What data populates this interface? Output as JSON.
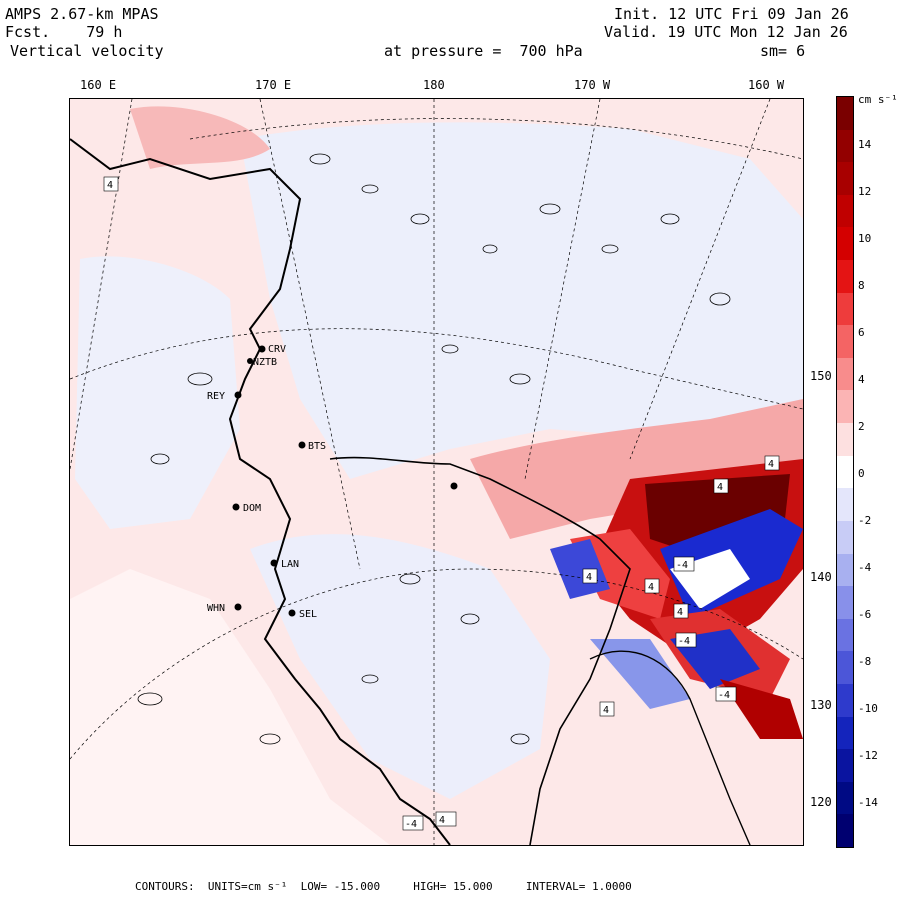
{
  "header": {
    "model": "AMPS 2.67-km MPAS",
    "fcst_label": "Fcst.",
    "fcst_value": "79 h",
    "field": "Vertical velocity",
    "init": "Init. 12 UTC Fri 09 Jan 26",
    "valid": "Valid. 19 UTC Mon 12 Jan 26",
    "pressure": "at pressure =  700 hPa",
    "smoothing": "sm= 6"
  },
  "longitude_labels": [
    "160 E",
    "170 E",
    "180",
    "170 W",
    "160 W"
  ],
  "latitude_labels": [
    "150 W",
    "140 W",
    "130 W",
    "120 W"
  ],
  "colorbar": {
    "units": "cm s⁻¹",
    "ticks": [
      "14",
      "12",
      "10",
      "8",
      "6",
      "4",
      "2",
      "0",
      "-2",
      "-4",
      "-6",
      "-8",
      "-10",
      "-12",
      "-14"
    ],
    "colors": [
      "#7a0000",
      "#930000",
      "#a80000",
      "#c00000",
      "#d40000",
      "#e41414",
      "#ee3c3c",
      "#f46464",
      "#f88c8c",
      "#fbb4b4",
      "#fde0e0",
      "#ffffff",
      "#e4e6fb",
      "#c8ccf6",
      "#a8b0f0",
      "#8890ea",
      "#6a72e2",
      "#4c56d8",
      "#2e3acc",
      "#1424bc",
      "#0a14a0",
      "#000a84",
      "#000070"
    ]
  },
  "stations": [
    "CRV",
    "NZTB",
    "REY",
    "BTS",
    "DOM",
    "LAN",
    "WHN",
    "SEL"
  ],
  "map_labels": [
    "4",
    "4",
    "4",
    "4",
    "4",
    "-4",
    "-4",
    "4",
    "-4",
    "4",
    "-4",
    "4"
  ],
  "footer": {
    "contours_label": "CONTOURS:",
    "units_label": "UNITS=cm s⁻¹",
    "low": "LOW= -15.000",
    "high": "HIGH= 15.000",
    "interval": "INTERVAL= 1.0000"
  }
}
